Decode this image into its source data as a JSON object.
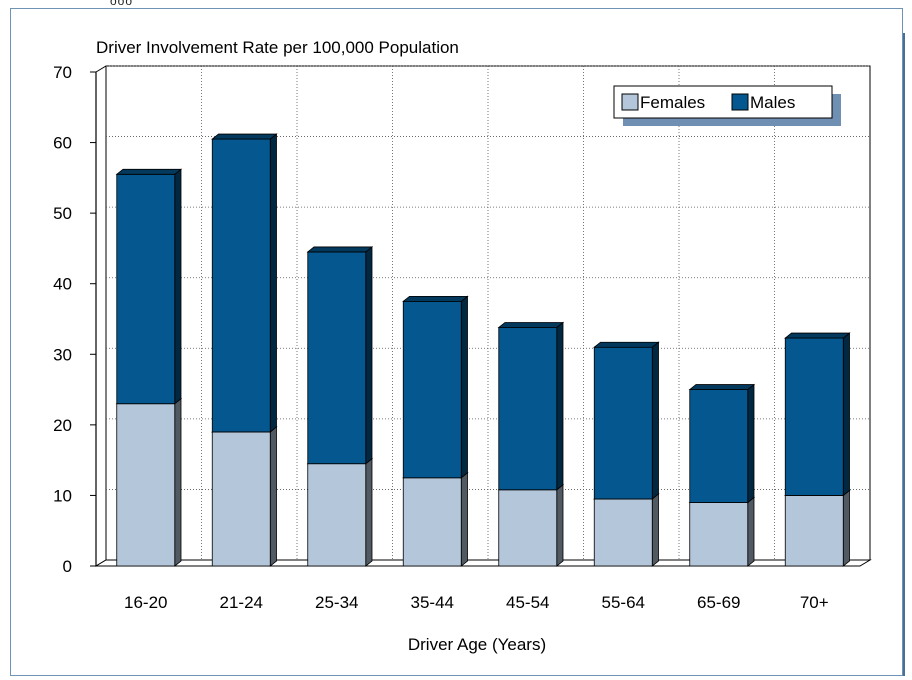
{
  "chart_data": {
    "type": "bar",
    "stacked": true,
    "three_d": true,
    "title": "Driver Involvement Rate per 100,000 Population",
    "xlabel": "Driver Age (Years)",
    "ylabel": "",
    "ylim": [
      0,
      70
    ],
    "yticks": [
      "0",
      "10",
      "20",
      "30",
      "40",
      "50",
      "60",
      "70"
    ],
    "grid": true,
    "legend_position": "top-right",
    "categories": [
      "16-20",
      "21-24",
      "25-34",
      "35-44",
      "45-54",
      "55-64",
      "65-69",
      "70+"
    ],
    "series": [
      {
        "name": "Females",
        "color": "#b4c6d9",
        "values": [
          23,
          19,
          14.5,
          12.5,
          10.8,
          9.5,
          9,
          10
        ]
      },
      {
        "name": "Males",
        "color": "#04578f",
        "values": [
          32.5,
          41.5,
          30,
          25,
          23,
          21.5,
          16,
          22.3
        ]
      }
    ]
  }
}
